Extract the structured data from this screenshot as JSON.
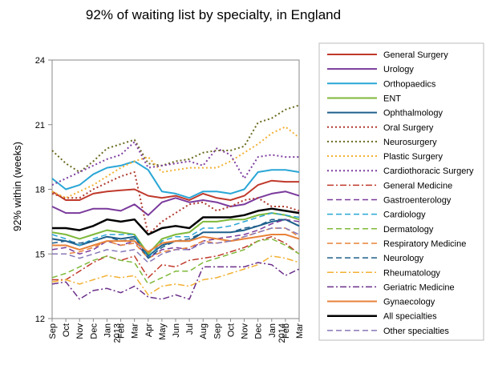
{
  "chart_data": {
    "type": "line",
    "title": "92% of waiting list by specialty, in England",
    "xlabel": "",
    "ylabel": "92% within (weeks)",
    "ylim": [
      12,
      24
    ],
    "yticks": [
      12,
      15,
      18,
      21,
      24
    ],
    "grid": false,
    "legend_position": "right",
    "x": [
      "Sep",
      "Oct",
      "Nov",
      "Dec",
      "Jan 2013",
      "Feb",
      "Mar",
      "Apr",
      "May",
      "Jun",
      "Jul",
      "Aug",
      "Sep",
      "Oct",
      "Nov",
      "Dec",
      "Jan 2014",
      "Feb",
      "Mar"
    ],
    "x_tick_labels": [
      {
        "lines": [
          "Sep"
        ]
      },
      {
        "lines": [
          "Oct"
        ]
      },
      {
        "lines": [
          "Nov"
        ]
      },
      {
        "lines": [
          "Dec"
        ]
      },
      {
        "lines": [
          "Jan",
          "2013"
        ]
      },
      {
        "lines": [
          "Feb"
        ]
      },
      {
        "lines": [
          "Mar"
        ]
      },
      {
        "lines": [
          "Apr"
        ]
      },
      {
        "lines": [
          "May"
        ]
      },
      {
        "lines": [
          "Jun"
        ]
      },
      {
        "lines": [
          "Jul"
        ]
      },
      {
        "lines": [
          "Aug"
        ]
      },
      {
        "lines": [
          "Sep"
        ]
      },
      {
        "lines": [
          "Oct"
        ]
      },
      {
        "lines": [
          "Nov"
        ]
      },
      {
        "lines": [
          "Dec"
        ]
      },
      {
        "lines": [
          "Jan",
          "2014"
        ]
      },
      {
        "lines": [
          "Feb"
        ]
      },
      {
        "lines": [
          "Mar"
        ]
      }
    ],
    "series": [
      {
        "name": "General Surgery",
        "color": "#c0392b",
        "style": "solid",
        "width": 2,
        "values": [
          17.9,
          17.5,
          17.5,
          17.8,
          17.9,
          17.95,
          18.0,
          17.7,
          17.6,
          17.7,
          17.5,
          17.8,
          17.6,
          17.5,
          17.7,
          18.2,
          18.4,
          18.35,
          18.35
        ]
      },
      {
        "name": "Urology",
        "color": "#7a3a9c",
        "style": "solid",
        "width": 2,
        "values": [
          17.2,
          16.9,
          16.9,
          17.1,
          17.1,
          17.0,
          17.3,
          16.8,
          17.4,
          17.6,
          17.4,
          17.5,
          17.4,
          17.2,
          17.3,
          17.6,
          17.8,
          17.9,
          17.7
        ]
      },
      {
        "name": "Orthopaedics",
        "color": "#2aa6d6",
        "style": "solid",
        "width": 2,
        "values": [
          18.5,
          18.0,
          18.2,
          18.7,
          19.0,
          19.1,
          19.3,
          18.9,
          17.9,
          17.8,
          17.6,
          17.9,
          17.9,
          17.8,
          18.0,
          18.8,
          18.9,
          18.9,
          18.8
        ]
      },
      {
        "name": "ENT",
        "color": "#7fb93a",
        "style": "solid",
        "width": 2,
        "values": [
          16.0,
          15.9,
          15.7,
          15.9,
          16.1,
          16.0,
          15.9,
          15.0,
          15.7,
          15.9,
          16.0,
          16.5,
          16.5,
          16.6,
          16.6,
          16.8,
          16.9,
          16.8,
          16.6
        ]
      },
      {
        "name": "Ophthalmology",
        "color": "#1f5f8b",
        "style": "solid",
        "width": 2,
        "values": [
          15.7,
          15.6,
          15.4,
          15.6,
          15.8,
          15.7,
          15.8,
          14.9,
          15.4,
          15.6,
          15.6,
          16.0,
          16.0,
          16.0,
          16.1,
          16.3,
          16.5,
          16.6,
          16.3
        ]
      },
      {
        "name": "Oral Surgery",
        "color": "#b03a2e",
        "style": "dotted",
        "width": 2,
        "values": [
          17.8,
          17.6,
          17.6,
          18.0,
          18.3,
          18.6,
          18.8,
          15.9,
          16.5,
          16.9,
          17.3,
          17.4,
          17.0,
          17.2,
          17.5,
          17.6,
          17.2,
          17.2,
          17.0
        ]
      },
      {
        "name": "Neurosurgery",
        "color": "#6b6a20",
        "style": "dotted",
        "width": 2,
        "values": [
          19.8,
          19.2,
          18.8,
          19.3,
          19.9,
          20.1,
          20.3,
          19.2,
          19.1,
          19.3,
          19.4,
          19.7,
          19.8,
          19.8,
          20.0,
          21.1,
          21.3,
          21.7,
          21.9
        ]
      },
      {
        "name": "Plastic Surgery",
        "color": "#f2b134",
        "style": "dotted",
        "width": 2,
        "values": [
          17.9,
          17.6,
          17.9,
          18.2,
          18.6,
          19.0,
          19.3,
          19.5,
          18.8,
          18.9,
          19.0,
          19.0,
          19.0,
          19.3,
          19.7,
          20.1,
          20.6,
          20.9,
          20.4
        ]
      },
      {
        "name": "Cardiothoracic Surgery",
        "color": "#7f3fa0",
        "style": "dotted",
        "width": 2,
        "values": [
          18.2,
          18.5,
          18.8,
          19.1,
          19.4,
          19.6,
          20.2,
          19.0,
          19.1,
          19.2,
          19.3,
          19.1,
          19.9,
          19.6,
          18.5,
          19.5,
          19.6,
          19.5,
          19.5
        ]
      },
      {
        "name": "General Medicine",
        "color": "#c0392b",
        "style": "dashdot",
        "width": 1.5,
        "values": [
          13.8,
          13.8,
          14.2,
          14.6,
          14.9,
          14.7,
          14.9,
          13.9,
          14.5,
          14.4,
          14.7,
          14.8,
          14.9,
          15.1,
          15.3,
          15.6,
          15.8,
          15.5,
          15.0
        ]
      },
      {
        "name": "Gastroenterology",
        "color": "#7a3a9c",
        "style": "dashed",
        "width": 1.5,
        "values": [
          15.2,
          15.3,
          15.0,
          15.2,
          15.6,
          15.4,
          15.6,
          14.8,
          15.2,
          15.3,
          15.2,
          15.6,
          15.7,
          15.8,
          15.9,
          16.1,
          16.4,
          16.6,
          16.5
        ]
      },
      {
        "name": "Cardiology",
        "color": "#2aa6d6",
        "style": "dashed",
        "width": 1.5,
        "values": [
          15.9,
          15.7,
          15.4,
          15.7,
          15.9,
          15.9,
          15.9,
          14.8,
          15.6,
          15.8,
          15.8,
          16.2,
          16.2,
          16.3,
          16.5,
          16.7,
          16.9,
          16.8,
          16.7
        ]
      },
      {
        "name": "Dermatology",
        "color": "#7fb93a",
        "style": "dashed",
        "width": 1.5,
        "values": [
          13.9,
          14.1,
          14.4,
          14.7,
          14.9,
          14.7,
          14.6,
          13.6,
          13.9,
          14.2,
          14.2,
          14.6,
          14.8,
          15.0,
          15.2,
          15.6,
          15.7,
          15.4,
          15.0
        ]
      },
      {
        "name": "Respiratory Medicine",
        "color": "#e8823a",
        "style": "dashed",
        "width": 1.5,
        "values": [
          15.0,
          15.0,
          15.1,
          15.3,
          15.6,
          15.4,
          15.5,
          14.8,
          15.1,
          15.2,
          15.3,
          15.6,
          15.5,
          15.6,
          15.8,
          16.0,
          16.2,
          16.2,
          15.8
        ]
      },
      {
        "name": "Neurology",
        "color": "#1f5f8b",
        "style": "dashed",
        "width": 1.5,
        "values": [
          15.5,
          15.6,
          15.5,
          15.6,
          15.8,
          15.6,
          15.7,
          14.8,
          15.3,
          15.6,
          15.7,
          16.0,
          16.0,
          16.0,
          16.2,
          16.3,
          16.6,
          16.6,
          16.3
        ]
      },
      {
        "name": "Rheumatology",
        "color": "#f2b134",
        "style": "dashdot",
        "width": 1.5,
        "values": [
          13.7,
          13.8,
          13.6,
          13.8,
          14.0,
          13.9,
          14.0,
          13.1,
          13.5,
          13.6,
          13.5,
          13.8,
          13.9,
          14.1,
          14.3,
          14.5,
          14.9,
          14.8,
          14.6
        ]
      },
      {
        "name": "Geriatric Medicine",
        "color": "#6b2f8a",
        "style": "dashdot",
        "width": 1.5,
        "values": [
          13.6,
          13.7,
          12.9,
          13.3,
          13.4,
          13.2,
          13.5,
          13.0,
          12.9,
          13.1,
          12.9,
          14.4,
          14.4,
          14.4,
          14.4,
          14.6,
          14.5,
          14.0,
          14.3
        ]
      },
      {
        "name": "Gynaecology",
        "color": "#e8823a",
        "style": "solid",
        "width": 2,
        "values": [
          15.4,
          15.4,
          15.2,
          15.4,
          15.6,
          15.6,
          15.6,
          15.1,
          15.5,
          15.6,
          15.6,
          15.8,
          15.7,
          15.6,
          15.7,
          15.8,
          15.9,
          15.9,
          15.7
        ]
      },
      {
        "name": "All specialties",
        "color": "#000000",
        "style": "solid",
        "width": 2.5,
        "values": [
          16.2,
          16.2,
          16.1,
          16.3,
          16.6,
          16.5,
          16.6,
          15.9,
          16.2,
          16.3,
          16.2,
          16.7,
          16.7,
          16.7,
          16.8,
          17.0,
          17.1,
          17.0,
          16.9
        ]
      },
      {
        "name": "Other specialties",
        "color": "#8878b8",
        "style": "dashed",
        "width": 1.5,
        "values": [
          15.0,
          15.0,
          14.8,
          15.0,
          15.2,
          15.1,
          15.2,
          14.6,
          15.0,
          15.2,
          15.2,
          15.5,
          15.5,
          15.6,
          15.8,
          16.0,
          16.2,
          16.2,
          15.9
        ]
      }
    ]
  }
}
